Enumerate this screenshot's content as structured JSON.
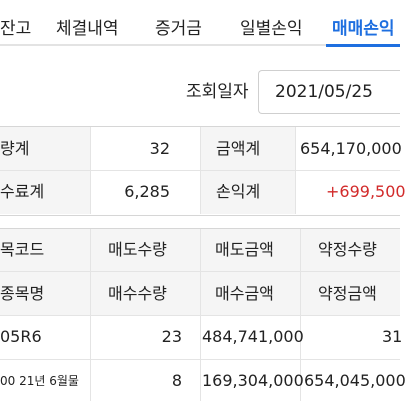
{
  "tabs": [
    {
      "label": "잔고"
    },
    {
      "label": "체결내역"
    },
    {
      "label": "증거금"
    },
    {
      "label": "일별손익"
    },
    {
      "label": "매매손익"
    }
  ],
  "query": {
    "label": "조회일자",
    "date": "2021/05/25"
  },
  "summary": {
    "qty_label": "량계",
    "qty_value": "32",
    "fee_label": "수료계",
    "fee_value": "6,285",
    "amount_label": "금액계",
    "amount_value": "654,170,000",
    "pnl_label": "손익계",
    "pnl_value": "+699,500",
    "pnl_color": "#d22a2a"
  },
  "table": {
    "headers_row1": [
      "목코드",
      "매도수량",
      "매도금액",
      "약정수량"
    ],
    "headers_row2": [
      "종목명",
      "매수수량",
      "매수금액",
      "약정금액"
    ],
    "rows": [
      {
        "c1": "05R6",
        "c2": "23",
        "c3": "484,741,000",
        "c4": "31"
      },
      {
        "c1": "00 21년 6월물",
        "c2": "8",
        "c3": "169,304,000",
        "c4": "654,045,000"
      }
    ]
  },
  "colors": {
    "accent": "#1e6fe0",
    "positive": "#d22a2a"
  }
}
